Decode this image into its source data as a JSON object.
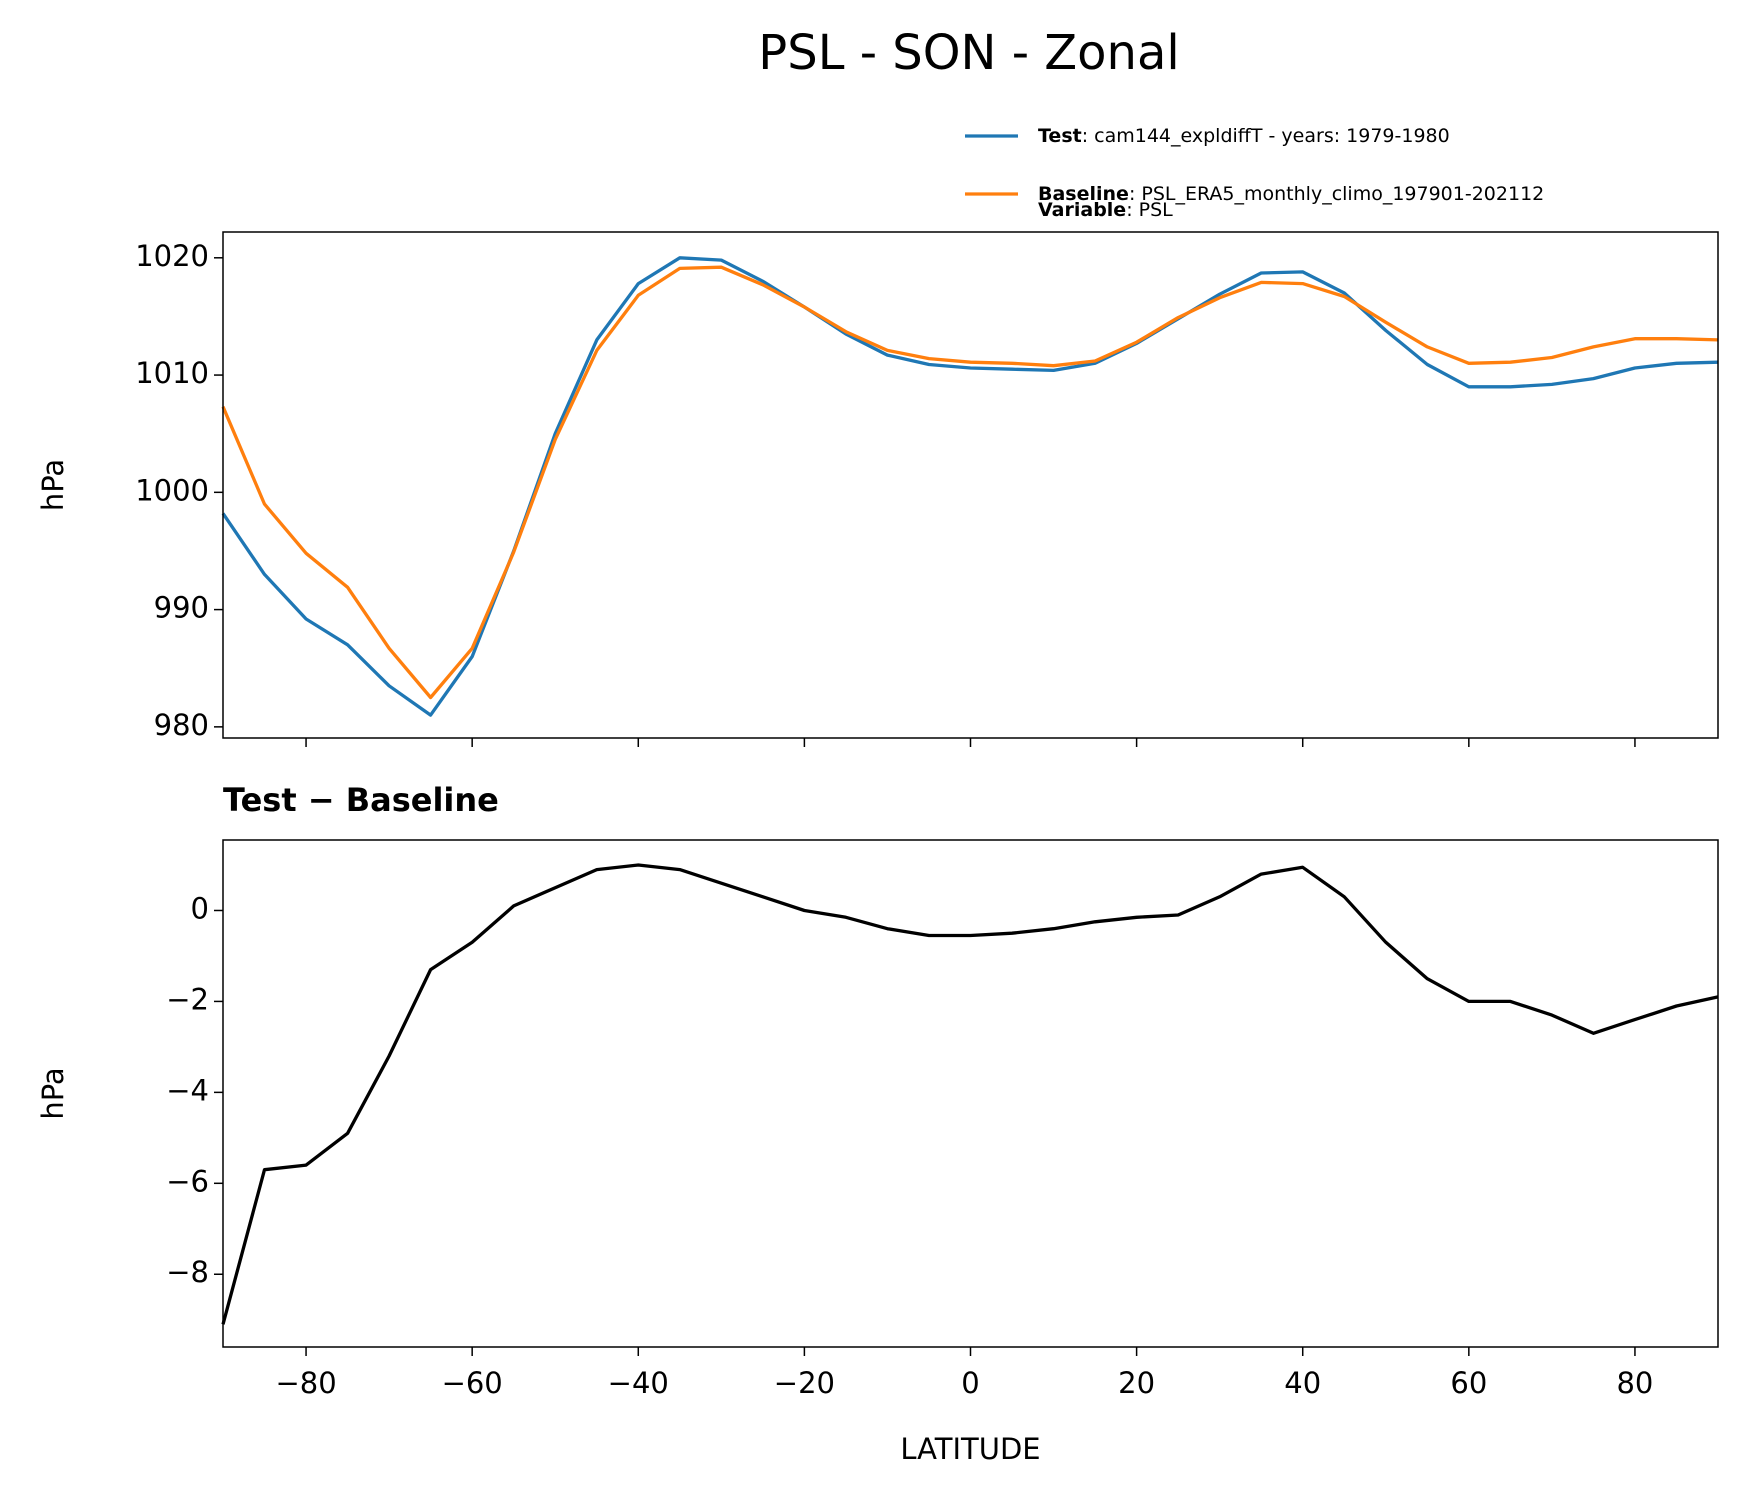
{
  "title": "PSL - SON - Zonal",
  "chart_data": [
    {
      "type": "line",
      "ylabel": "hPa",
      "x": [
        -90,
        -85,
        -80,
        -75,
        -70,
        -65,
        -60,
        -55,
        -50,
        -45,
        -40,
        -35,
        -30,
        -25,
        -20,
        -15,
        -10,
        -5,
        0,
        5,
        10,
        15,
        20,
        25,
        30,
        35,
        40,
        45,
        50,
        55,
        60,
        65,
        70,
        75,
        80,
        85,
        90
      ],
      "series": [
        {
          "name": "Test",
          "description": ": cam144_expldiffT - years: 1979-1980",
          "color": "#1f77b4",
          "values": [
            998.2,
            993,
            989.2,
            987,
            983.5,
            981,
            986,
            995,
            1005,
            1013,
            1017.8,
            1020,
            1019.8,
            1018,
            1015.8,
            1013.5,
            1011.7,
            1010.9,
            1010.6,
            1010.5,
            1010.4,
            1011,
            1012.7,
            1014.8,
            1016.9,
            1018.7,
            1018.8,
            1017,
            1013.8,
            1010.9,
            1009,
            1009,
            1009.2,
            1009.7,
            1010.6,
            1011,
            1011.1
          ]
        },
        {
          "name": "Baseline",
          "description": ": PSL_ERA5_monthly_climo_197901-202112",
          "color": "#ff7f0e",
          "values": [
            1007.3,
            999,
            994.8,
            991.9,
            986.7,
            982.5,
            986.7,
            994.9,
            1004.5,
            1012.1,
            1016.8,
            1019.1,
            1019.2,
            1017.7,
            1015.8,
            1013.7,
            1012.1,
            1011.4,
            1011.1,
            1011,
            1010.8,
            1011.2,
            1012.8,
            1014.9,
            1016.6,
            1017.9,
            1017.8,
            1016.7,
            1014.5,
            1012.4,
            1011,
            1011.1,
            1011.5,
            1012.4,
            1013.1,
            1013.1,
            1013
          ]
        }
      ],
      "legend_extra": {
        "name": "Variable",
        "description": ": PSL"
      },
      "xlim": [
        -90,
        90
      ],
      "xticks": [
        -80,
        -60,
        -40,
        -20,
        0,
        20,
        40,
        60,
        80
      ],
      "show_xtick_labels": false,
      "ylim": [
        979.05,
        1022.2
      ],
      "yticks": [
        980,
        990,
        1000,
        1010,
        1020
      ]
    },
    {
      "type": "line",
      "title": "Test − Baseline",
      "xlabel": "LATITUDE",
      "ylabel": "hPa",
      "x": [
        -90,
        -85,
        -80,
        -75,
        -70,
        -65,
        -60,
        -55,
        -50,
        -45,
        -40,
        -35,
        -30,
        -25,
        -20,
        -15,
        -10,
        -5,
        0,
        5,
        10,
        15,
        20,
        25,
        30,
        35,
        40,
        45,
        50,
        55,
        60,
        65,
        70,
        75,
        80,
        85,
        90
      ],
      "series": [
        {
          "name": "Test − Baseline",
          "color": "#000000",
          "values": [
            -9.1,
            -5.7,
            -5.6,
            -4.9,
            -3.2,
            -1.3,
            -0.7,
            0.1,
            0.5,
            0.9,
            1.0,
            0.9,
            0.6,
            0.3,
            0.0,
            -0.15,
            -0.4,
            -0.55,
            -0.55,
            -0.5,
            -0.4,
            -0.25,
            -0.15,
            -0.1,
            0.3,
            0.8,
            0.95,
            0.3,
            -0.7,
            -1.5,
            -2.0,
            -2.0,
            -2.3,
            -2.7,
            -2.4,
            -2.1,
            -1.9
          ]
        }
      ],
      "xlim": [
        -90,
        90
      ],
      "xticks": [
        {
          "value": -80,
          "label": "−80"
        },
        {
          "value": -60,
          "label": "−60"
        },
        {
          "value": -40,
          "label": "−40"
        },
        {
          "value": -20,
          "label": "−20"
        },
        0,
        20,
        40,
        60,
        80
      ],
      "ylim": [
        -9.6,
        1.55
      ],
      "yticks": [
        {
          "value": -8,
          "label": "−8"
        },
        {
          "value": -6,
          "label": "−6"
        },
        {
          "value": -4,
          "label": "−4"
        },
        {
          "value": -2,
          "label": "−2"
        },
        0
      ]
    }
  ]
}
